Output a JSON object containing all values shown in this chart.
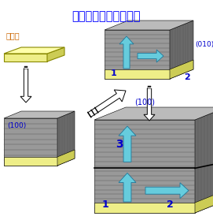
{
  "title": "図１　繰返し成長技術",
  "title_color": "#0000ff",
  "title_fontsize": 10.5,
  "seed_label": "種結晶",
  "seed_label_color": "#cc6600",
  "label_010": "(010)",
  "label_100_top": "(100)",
  "label_100_bl": "(100)",
  "number_1": "1",
  "number_2": "2",
  "number_3": "3",
  "bg_color": "#ffffff",
  "front_color": "#999999",
  "top_color": "#bbbbbb",
  "side_color": "#6a6a6a",
  "line_color": "#555555",
  "yellow_top": "#ffffaa",
  "yellow_front": "#eeee88",
  "yellow_side": "#cccc55",
  "cyan_arrow": "#66ccdd",
  "cyan_edge": "#227799",
  "number_color": "#0000cc",
  "label_color": "#0000cc"
}
